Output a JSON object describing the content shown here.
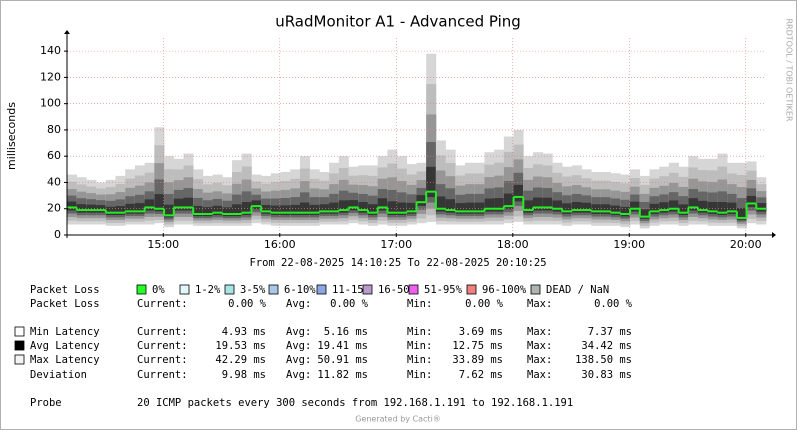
{
  "chart_data": {
    "type": "smokeping",
    "title": "uRadMonitor A1 - Advanced Ping",
    "ylabel": "milliseconds",
    "subtitle": "From 22-08-2025 14:10:25 To 22-08-2025 20:10:25",
    "watermark": "RRDTOOL / TOBI OETIKER",
    "x": [
      "14:10:25",
      "14:15:25",
      "14:20:25",
      "14:25:25",
      "14:30:25",
      "14:35:25",
      "14:40:25",
      "14:45:25",
      "14:50:25",
      "14:55:25",
      "15:00:25",
      "15:05:25",
      "15:10:25",
      "15:15:25",
      "15:20:25",
      "15:25:25",
      "15:30:25",
      "15:35:25",
      "15:40:25",
      "15:45:25",
      "15:50:25",
      "15:55:25",
      "16:00:25",
      "16:05:25",
      "16:10:25",
      "16:15:25",
      "16:20:25",
      "16:25:25",
      "16:30:25",
      "16:35:25",
      "16:40:25",
      "16:45:25",
      "16:50:25",
      "16:55:25",
      "17:00:25",
      "17:05:25",
      "17:10:25",
      "17:15:25",
      "17:20:25",
      "17:25:25",
      "17:30:25",
      "17:35:25",
      "17:40:25",
      "17:45:25",
      "17:50:25",
      "17:55:25",
      "18:00:25",
      "18:05:25",
      "18:10:25",
      "18:15:25",
      "18:20:25",
      "18:25:25",
      "18:30:25",
      "18:35:25",
      "18:40:25",
      "18:45:25",
      "18:50:25",
      "18:55:25",
      "19:00:25",
      "19:05:25",
      "19:10:25",
      "19:15:25",
      "19:20:25",
      "19:25:25",
      "19:30:25",
      "19:35:25",
      "19:40:25",
      "19:45:25",
      "19:50:25",
      "19:55:25",
      "20:00:25",
      "20:05:25"
    ],
    "xlim": [
      "14:10:25",
      "20:10:25"
    ],
    "xticks": [
      "15:00",
      "16:00",
      "17:00",
      "18:00",
      "19:00",
      "20:00"
    ],
    "ylim": [
      0,
      150
    ],
    "yticks": [
      0,
      20,
      40,
      60,
      80,
      100,
      120,
      140
    ],
    "grid": true,
    "median": {
      "color": "#22ee22",
      "values": [
        21,
        19,
        19,
        19,
        17,
        17,
        18,
        18,
        21,
        20,
        15,
        21,
        21,
        16,
        16,
        17,
        16,
        16,
        17,
        22,
        18,
        17,
        17,
        17,
        17,
        17,
        18,
        18,
        19,
        21,
        19,
        17,
        21,
        17,
        17,
        18,
        25,
        33,
        20,
        19,
        18,
        18,
        18,
        20,
        20,
        22,
        29,
        19,
        21,
        21,
        20,
        18,
        19,
        19,
        18,
        18,
        17,
        16,
        20,
        14,
        18,
        19,
        20,
        17,
        21,
        19,
        18,
        17,
        18,
        13,
        24,
        20
      ]
    },
    "min": [
      8,
      8,
      8,
      8,
      7,
      7,
      8,
      8,
      8,
      9,
      6,
      8,
      8,
      7,
      7,
      7,
      7,
      7,
      7,
      9,
      8,
      7,
      7,
      7,
      7,
      7,
      8,
      8,
      8,
      9,
      8,
      7,
      8,
      7,
      7,
      8,
      9,
      10,
      8,
      8,
      8,
      8,
      8,
      8,
      8,
      9,
      10,
      8,
      8,
      8,
      8,
      7,
      8,
      8,
      7,
      7,
      7,
      6,
      8,
      5,
      7,
      8,
      8,
      7,
      8,
      8,
      7,
      7,
      7,
      5,
      9,
      8
    ],
    "max": [
      46,
      44,
      42,
      40,
      42,
      45,
      50,
      53,
      55,
      82,
      60,
      58,
      62,
      50,
      45,
      46,
      44,
      57,
      62,
      46,
      45,
      47,
      48,
      50,
      60,
      50,
      48,
      55,
      60,
      52,
      53,
      53,
      60,
      65,
      60,
      54,
      55,
      138,
      72,
      65,
      53,
      55,
      55,
      63,
      65,
      75,
      80,
      60,
      63,
      62,
      55,
      52,
      53,
      50,
      48,
      48,
      47,
      46,
      50,
      45,
      50,
      52,
      55,
      52,
      60,
      58,
      58,
      62,
      55,
      55,
      56,
      44
    ]
  },
  "legend": {
    "label": "Packet Loss",
    "items": [
      {
        "label": "0%",
        "color": "#26ff26"
      },
      {
        "label": "1-2%",
        "color": "#e0f8f8"
      },
      {
        "label": "3-5%",
        "color": "#a8e4e4"
      },
      {
        "label": "6-10%",
        "color": "#a8c8e8"
      },
      {
        "label": "11-15%",
        "color": "#8ca8e4"
      },
      {
        "label": "16-50%",
        "color": "#b89cd0"
      },
      {
        "label": "51-95%",
        "color": "#f060f0"
      },
      {
        "label": "96-100%",
        "color": "#f08080"
      },
      {
        "label": "DEAD / NaN",
        "color": "#aeb4ae"
      }
    ]
  },
  "stats": [
    {
      "icon": null,
      "cells": [
        "Packet Loss",
        "Current:",
        "0.00 %",
        "Avg:",
        "0.00 %",
        "Min:",
        "0.00 %",
        "Max:",
        "0.00 %"
      ]
    },
    {
      "icon": "#ffffff",
      "cells": [
        "Min Latency",
        "Current:",
        "4.93 ms",
        "Avg:",
        "5.16 ms",
        "Min:",
        "3.69 ms",
        "Max:",
        "7.37 ms"
      ]
    },
    {
      "icon": "#000000",
      "cells": [
        "Avg Latency",
        "Current:",
        "19.53 ms",
        "Avg:",
        "19.41 ms",
        "Min:",
        "12.75 ms",
        "Max:",
        "34.42 ms"
      ]
    },
    {
      "icon": "#f4f4f4",
      "cells": [
        "Max Latency",
        "Current:",
        "42.29 ms",
        "Avg:",
        "50.91 ms",
        "Min:",
        "33.89 ms",
        "Max:",
        "138.50 ms"
      ]
    },
    {
      "icon": null,
      "cells": [
        "Deviation",
        "Current:",
        "9.98 ms",
        "Avg:",
        "11.82 ms",
        "Min:",
        "7.62 ms",
        "Max:",
        "30.83 ms"
      ]
    }
  ],
  "probe": {
    "label": "Probe",
    "text": "20 ICMP packets every 300 seconds from 192.168.1.191 to 192.168.1.191"
  },
  "footer": "Generated by Cacti®"
}
